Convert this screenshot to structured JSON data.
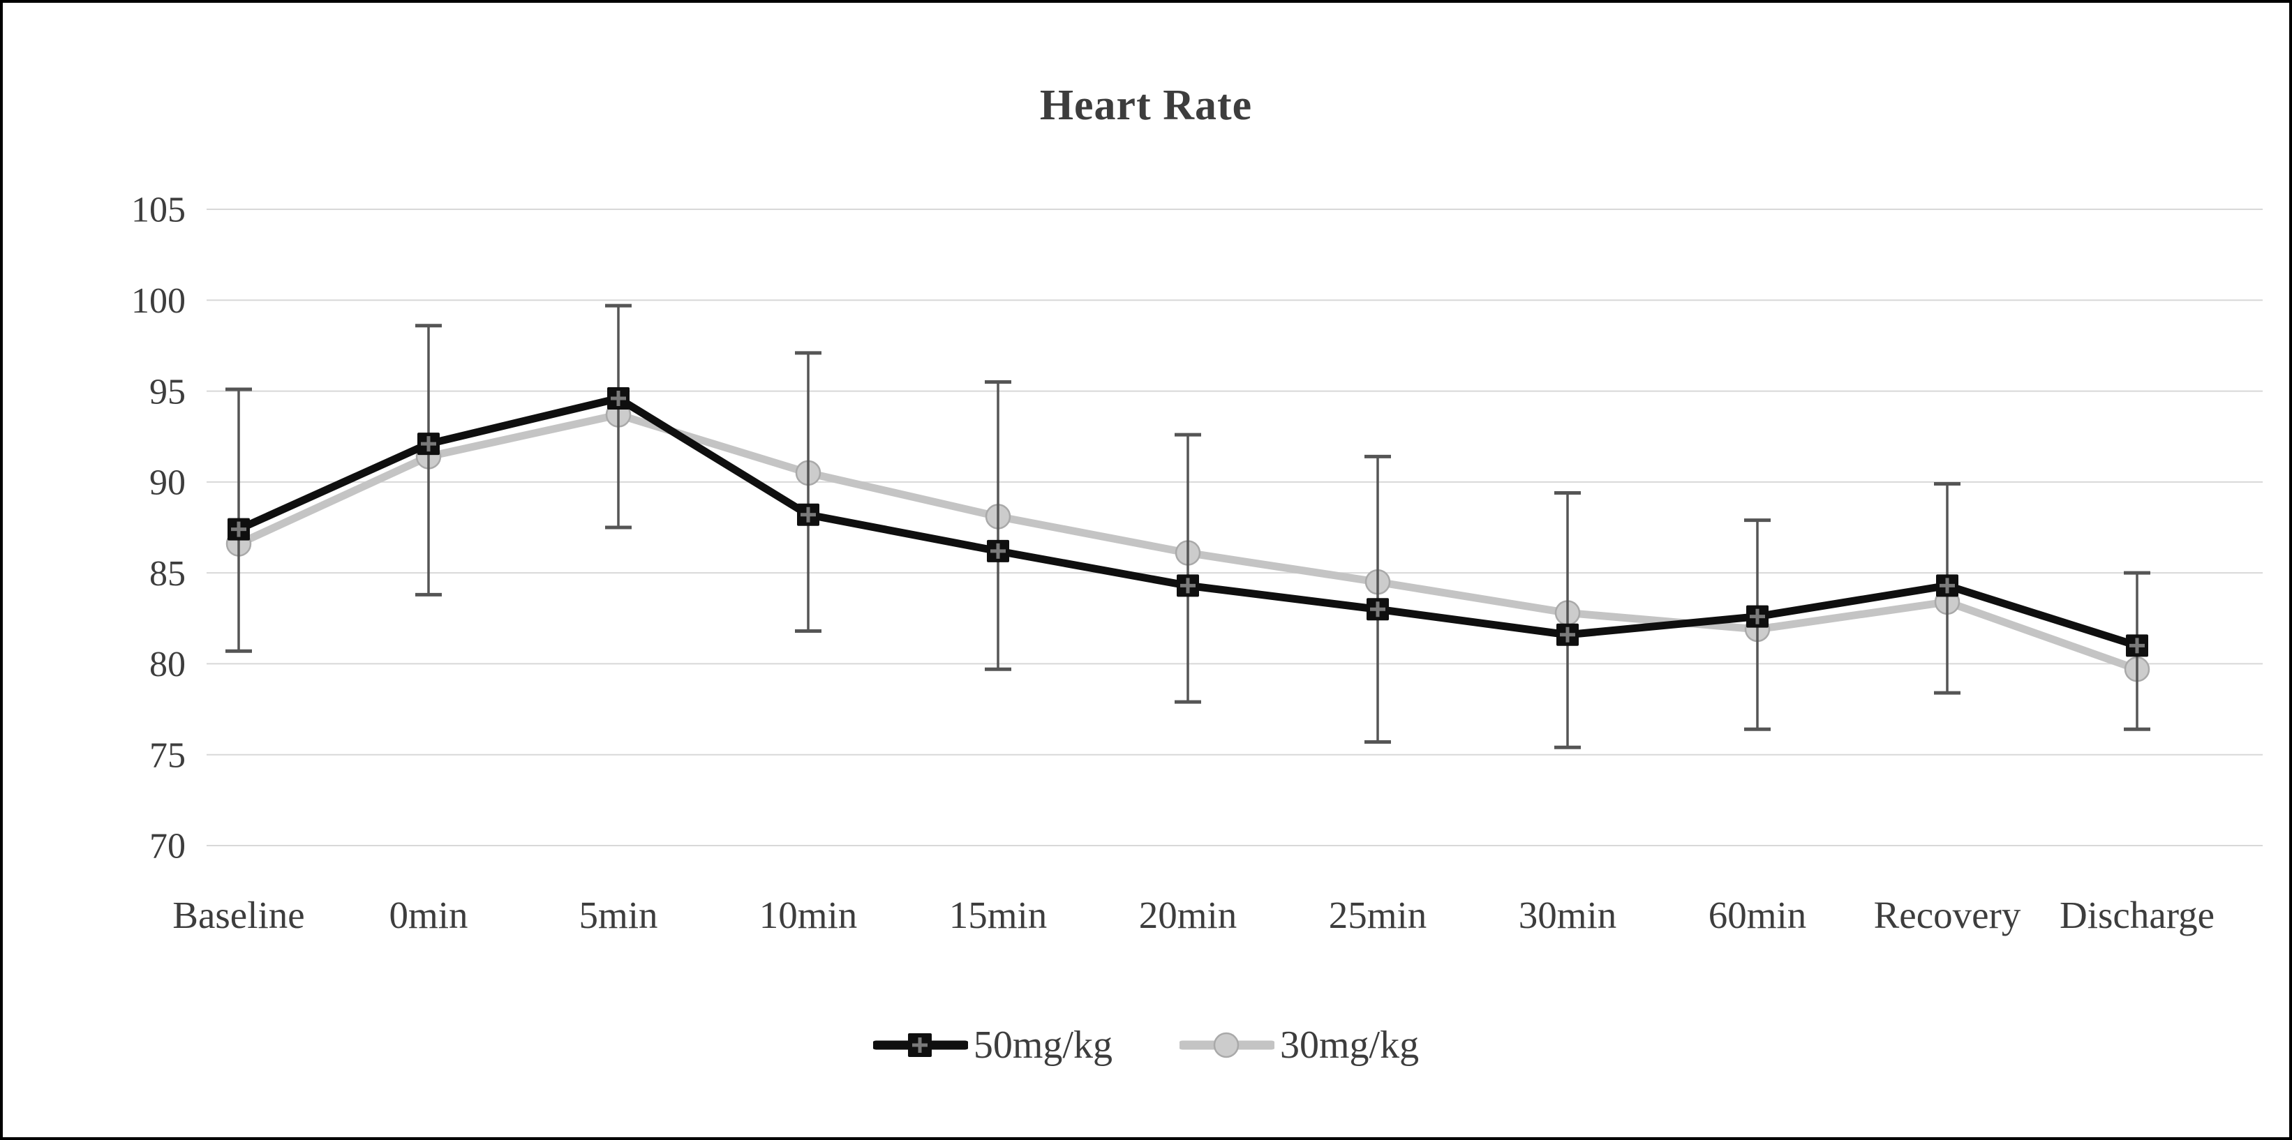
{
  "chart_data": {
    "type": "line",
    "title": "Heart Rate",
    "categories": [
      "Baseline",
      "0min",
      "5min",
      "10min",
      "15min",
      "20min",
      "25min",
      "30min",
      "60min",
      "Recovery",
      "Discharge"
    ],
    "series": [
      {
        "name": "50mg/kg",
        "marker": "square-plus",
        "color": "#0f0f0f",
        "marker_fill": "#0f0f0f",
        "marker_detail": "#7a7a7a",
        "values": [
          87.4,
          92.1,
          94.6,
          88.2,
          86.2,
          84.3,
          83.0,
          81.6,
          82.6,
          84.3,
          81.0
        ]
      },
      {
        "name": "30mg/kg",
        "marker": "circle",
        "color": "#c4c4c4",
        "marker_fill": "#cccccc",
        "marker_detail": "#a9a9a9",
        "values": [
          86.6,
          91.4,
          93.7,
          90.5,
          88.1,
          86.1,
          84.5,
          82.8,
          81.9,
          83.4,
          79.7
        ]
      }
    ],
    "error_bars": {
      "color": "#555555",
      "upper": [
        95.1,
        98.6,
        99.7,
        97.1,
        95.5,
        92.6,
        91.4,
        89.4,
        87.9,
        89.9,
        85.0
      ],
      "lower": [
        80.7,
        83.8,
        87.5,
        81.8,
        79.7,
        77.9,
        75.7,
        75.4,
        76.4,
        78.4,
        76.4
      ]
    },
    "y_axis": {
      "min": 70,
      "max": 105,
      "ticks": [
        105,
        100,
        95,
        90,
        85,
        80,
        75,
        70
      ]
    },
    "xlabel": "",
    "ylabel": "",
    "grid": "horizontal",
    "gridline_color": "#d8d8d8",
    "text_color": "#3d3d3d",
    "legend_position": "bottom"
  }
}
